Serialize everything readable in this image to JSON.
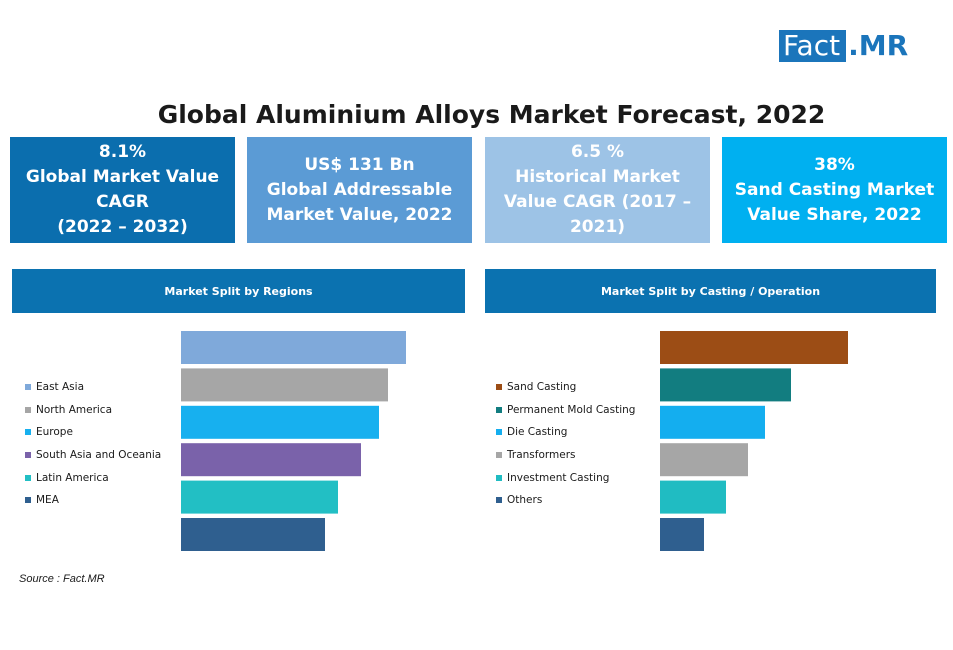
{
  "logo": {
    "fact": "Fact",
    "mr": ".MR"
  },
  "title": "Global Aluminium Alloys Market Forecast, 2022",
  "kpis": [
    {
      "lines": [
        "8.1%",
        "Global Market Value",
        "CAGR",
        "(2022 – 2032)"
      ],
      "color": "#0b6eae"
    },
    {
      "lines": [
        "US$ 131 Bn",
        "Global Addressable",
        "Market Value, 2022"
      ],
      "color": "#5b9bd5"
    },
    {
      "lines": [
        "6.5 %",
        "Historical Market",
        "Value CAGR (2017 –",
        "2021)"
      ],
      "color": "#9dc3e6"
    },
    {
      "lines": [
        "38%",
        "Sand Casting Market",
        "Value Share, 2022"
      ],
      "color": "#00b0f0"
    }
  ],
  "panels": {
    "left_title": "Market Split by Regions",
    "right_title": "Market Split by Casting / Operation"
  },
  "chart_data": [
    {
      "type": "bar",
      "orientation": "horizontal",
      "title": "Market Split by Regions",
      "categories": [
        "East Asia",
        "North America",
        "Europe",
        "South Asia and Oceania",
        "Latin America",
        "MEA"
      ],
      "values": [
        225,
        207,
        198,
        180,
        157,
        144
      ],
      "colors": [
        "#7fa9da",
        "#a6a6a6",
        "#17b0ef",
        "#7a62aa",
        "#22bfc4",
        "#2f5f8f"
      ],
      "xlim": [
        0,
        240
      ],
      "grid": false,
      "legend": "left"
    },
    {
      "type": "bar",
      "orientation": "horizontal",
      "title": "Market Split by Casting / Operation",
      "categories": [
        "Sand Casting",
        "Permanent Mold Casting",
        "Die Casting",
        "Transformers",
        "Investment Casting",
        "Others"
      ],
      "values": [
        188,
        131,
        105,
        88,
        66,
        44
      ],
      "colors": [
        "#9c4d15",
        "#127d80",
        "#14aeef",
        "#a6a6a6",
        "#20bcc2",
        "#2f5f8f"
      ],
      "xlim": [
        0,
        240
      ],
      "grid": false,
      "legend": "left"
    }
  ],
  "source": "Source : Fact.MR"
}
